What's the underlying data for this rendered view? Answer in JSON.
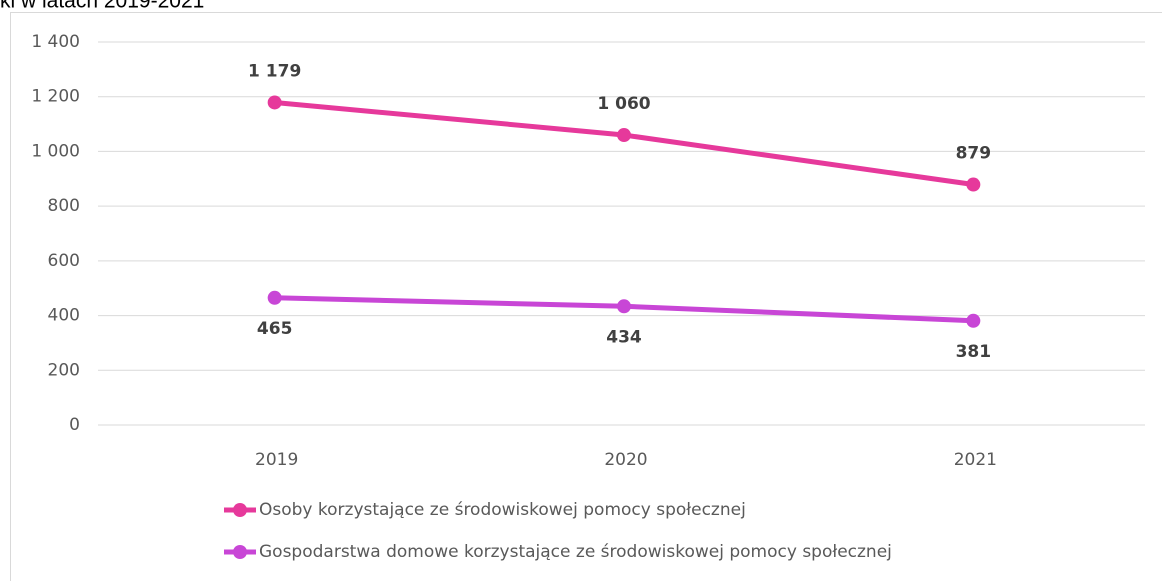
{
  "chart_data": {
    "type": "line",
    "title": "ki w latach 2019-2021",
    "categories": [
      "2019",
      "2020",
      "2021"
    ],
    "series": [
      {
        "name": "Osoby korzystające ze środowiskowej pomocy społecznej",
        "color": "#e6399b",
        "values": [
          1179,
          1060,
          879
        ],
        "value_labels": [
          "1 179",
          "1 060",
          "879"
        ]
      },
      {
        "name": "Gospodarstwa domowe korzystające ze środowiskowej pomocy społecznej",
        "color": "#c846d6",
        "values": [
          465,
          434,
          381
        ]
      }
    ],
    "ylim": [
      0,
      1400
    ],
    "yticks": [
      0,
      200,
      400,
      600,
      800,
      {
        "value": 1000,
        "label": "1 000"
      },
      {
        "value": 1200,
        "label": "1 200"
      },
      {
        "value": 1400,
        "label": "1 400"
      }
    ],
    "grid": true,
    "legend": "bottom"
  }
}
